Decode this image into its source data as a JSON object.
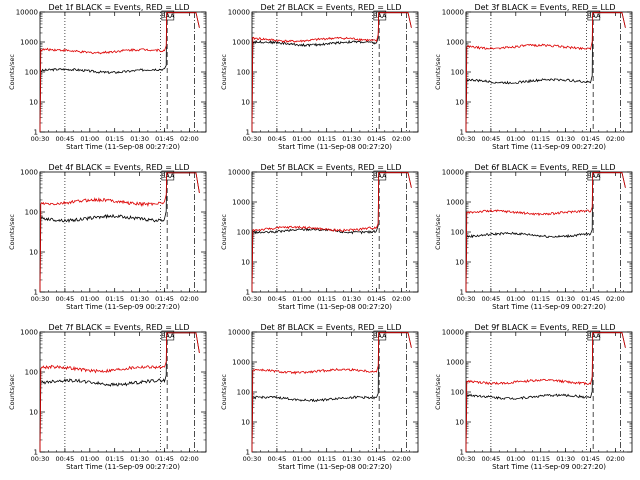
{
  "chart_data": [
    {
      "type": "line",
      "title": "Det 1f BLACK = Events, RED = LLD",
      "xlabel": "Start Time (11-Sep-08 00:27:20)",
      "ylabel": "Counts/sec",
      "yscale": "log",
      "ylim": [
        1,
        10000
      ],
      "xlim": [
        "00:30",
        "02:10"
      ],
      "x_ticks": [
        "00:30",
        "00:45",
        "01:00",
        "01:15",
        "01:30",
        "01:45",
        "02:00"
      ],
      "y_ticks": [
        "1",
        "10",
        "100",
        "1000",
        "10000"
      ],
      "annotation": "SAA",
      "series": [
        {
          "color": "#000000",
          "level": 110
        },
        {
          "color": "#dd0000",
          "level": 500
        }
      ]
    },
    {
      "type": "line",
      "title": "Det 2f BLACK = Events, RED = LLD",
      "xlabel": "Start Time (11-Sep-08 00:27:20)",
      "ylabel": "Counts/sec",
      "yscale": "log",
      "ylim": [
        1,
        10000
      ],
      "xlim": [
        "00:30",
        "02:10"
      ],
      "x_ticks": [
        "00:30",
        "00:45",
        "01:00",
        "01:15",
        "01:30",
        "01:45",
        "02:00"
      ],
      "y_ticks": [
        "1",
        "10",
        "100",
        "1000",
        "10000"
      ],
      "annotation": "SAA",
      "series": [
        {
          "color": "#000000",
          "level": 900
        },
        {
          "color": "#dd0000",
          "level": 1200
        }
      ]
    },
    {
      "type": "line",
      "title": "Det 3f BLACK = Events, RED = LLD",
      "xlabel": "Start Time (11-Sep-09 00:27:20)",
      "ylabel": "Counts/sec",
      "yscale": "log",
      "ylim": [
        1,
        10000
      ],
      "xlim": [
        "00:30",
        "02:10"
      ],
      "x_ticks": [
        "00:30",
        "00:45",
        "01:00",
        "01:15",
        "01:30",
        "01:45",
        "02:00"
      ],
      "y_ticks": [
        "1",
        "10",
        "100",
        "1000",
        "10000"
      ],
      "annotation": "SAA",
      "series": [
        {
          "color": "#000000",
          "level": 50
        },
        {
          "color": "#dd0000",
          "level": 700
        }
      ]
    },
    {
      "type": "line",
      "title": "Det 4f BLACK = Events, RED = LLD",
      "xlabel": "Start Time (11-Sep-09 00:27:20)",
      "ylabel": "Counts/sec",
      "yscale": "log",
      "ylim": [
        1,
        1000
      ],
      "xlim": [
        "00:30",
        "02:10"
      ],
      "x_ticks": [
        "00:30",
        "00:45",
        "01:00",
        "01:15",
        "01:30",
        "01:45",
        "02:00"
      ],
      "y_ticks": [
        "1",
        "10",
        "100",
        "1000"
      ],
      "annotation": "SAA",
      "series": [
        {
          "color": "#000000",
          "level": 70
        },
        {
          "color": "#dd0000",
          "level": 180
        }
      ]
    },
    {
      "type": "line",
      "title": "Det 5f BLACK = Events, RED = LLD",
      "xlabel": "Start Time (11-Sep-08 00:27:20)",
      "ylabel": "Counts/sec",
      "yscale": "log",
      "ylim": [
        1,
        10000
      ],
      "xlim": [
        "00:30",
        "02:10"
      ],
      "x_ticks": [
        "00:30",
        "00:45",
        "01:00",
        "01:15",
        "01:30",
        "01:45",
        "02:00"
      ],
      "y_ticks": [
        "1",
        "10",
        "100",
        "1000",
        "10000"
      ],
      "annotation": "SAA",
      "series": [
        {
          "color": "#000000",
          "level": 110
        },
        {
          "color": "#dd0000",
          "level": 130
        }
      ]
    },
    {
      "type": "line",
      "title": "Det 6f BLACK = Events, RED = LLD",
      "xlabel": "Start Time (11-Sep-09 00:27:20)",
      "ylabel": "Counts/sec",
      "yscale": "log",
      "ylim": [
        1,
        10000
      ],
      "xlim": [
        "00:30",
        "02:10"
      ],
      "x_ticks": [
        "00:30",
        "00:45",
        "01:00",
        "01:15",
        "01:30",
        "01:45",
        "02:00"
      ],
      "y_ticks": [
        "1",
        "10",
        "100",
        "1000",
        "10000"
      ],
      "annotation": "SAA",
      "series": [
        {
          "color": "#000000",
          "level": 80
        },
        {
          "color": "#dd0000",
          "level": 450
        }
      ]
    },
    {
      "type": "line",
      "title": "Det 7f BLACK = Events, RED = LLD",
      "xlabel": "Start Time (11-Sep-09 00:27:20)",
      "ylabel": "Counts/sec",
      "yscale": "log",
      "ylim": [
        1,
        1000
      ],
      "xlim": [
        "00:30",
        "02:10"
      ],
      "x_ticks": [
        "00:30",
        "00:45",
        "01:00",
        "01:15",
        "01:30",
        "01:45",
        "02:00"
      ],
      "y_ticks": [
        "1",
        "10",
        "100",
        "1000"
      ],
      "annotation": "SAA",
      "series": [
        {
          "color": "#000000",
          "level": 55
        },
        {
          "color": "#dd0000",
          "level": 120
        }
      ]
    },
    {
      "type": "line",
      "title": "Det 8f BLACK = Events, RED = LLD",
      "xlabel": "Start Time (11-Sep-08 00:27:20)",
      "ylabel": "Counts/sec",
      "yscale": "log",
      "ylim": [
        1,
        10000
      ],
      "xlim": [
        "00:30",
        "02:10"
      ],
      "x_ticks": [
        "00:30",
        "00:45",
        "01:00",
        "01:15",
        "01:30",
        "01:45",
        "02:00"
      ],
      "y_ticks": [
        "1",
        "10",
        "100",
        "1000",
        "10000"
      ],
      "annotation": "SAA",
      "series": [
        {
          "color": "#000000",
          "level": 60
        },
        {
          "color": "#dd0000",
          "level": 500
        }
      ]
    },
    {
      "type": "line",
      "title": "Det 9f BLACK = Events, RED = LLD",
      "xlabel": "Start Time (11-Sep-09 00:27:20)",
      "ylabel": "Counts/sec",
      "yscale": "log",
      "ylim": [
        1,
        10000
      ],
      "xlim": [
        "00:30",
        "02:10"
      ],
      "x_ticks": [
        "00:30",
        "00:45",
        "01:00",
        "01:15",
        "01:30",
        "01:45",
        "02:00"
      ],
      "y_ticks": [
        "1",
        "10",
        "100",
        "1000",
        "10000"
      ],
      "annotation": "SAA",
      "series": [
        {
          "color": "#000000",
          "level": 70
        },
        {
          "color": "#dd0000",
          "level": 220
        }
      ]
    }
  ]
}
